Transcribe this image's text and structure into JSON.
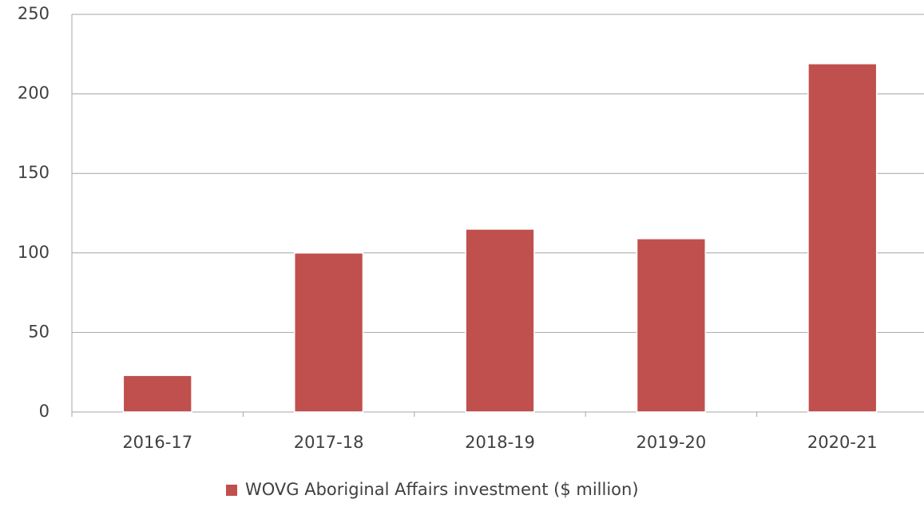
{
  "chart_data": {
    "type": "bar",
    "categories": [
      "2016-17",
      "2017-18",
      "2018-19",
      "2019-20",
      "2020-21"
    ],
    "series": [
      {
        "name": "WOVG Aboriginal Affairs investment ($ million)",
        "color": "#c0504d",
        "values": [
          23,
          100,
          115,
          109,
          219
        ]
      }
    ],
    "ylim": [
      0,
      250
    ],
    "yticks": [
      0,
      50,
      100,
      150,
      200,
      250
    ],
    "grid": true,
    "legend": "bottom"
  }
}
